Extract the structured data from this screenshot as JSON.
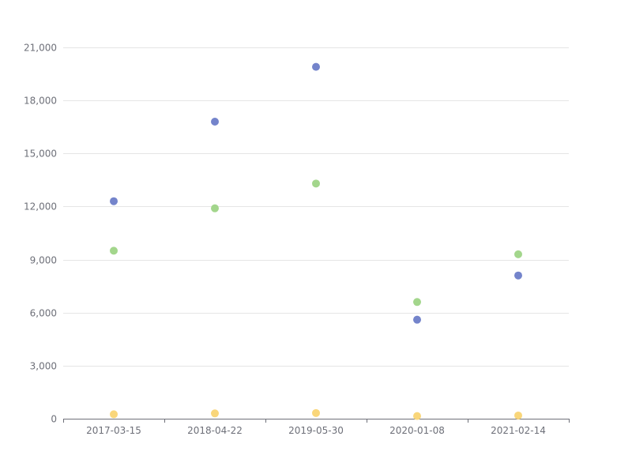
{
  "chart_data": {
    "type": "scatter",
    "x": [
      "2017-03-15",
      "2018-04-22",
      "2019-05-30",
      "2020-01-08",
      "2021-02-14"
    ],
    "series": [
      {
        "values": [
          12300,
          16800,
          19900,
          5600,
          8100
        ],
        "color": "#7484cb"
      },
      {
        "values": [
          9500,
          11900,
          13300,
          6600,
          9300
        ],
        "color": "#a3d68c"
      },
      {
        "values": [
          250,
          300,
          320,
          150,
          180
        ],
        "color": "#f9d67a"
      }
    ],
    "y_ticks": [
      "0",
      "3,000",
      "6,000",
      "9,000",
      "12,000",
      "15,000",
      "18,000",
      "21,000"
    ],
    "ylim": [
      0,
      21000
    ],
    "ytick_step": 3000,
    "grid": true,
    "axis_color": "#6e7079",
    "grid_color": "#e5e5e5"
  }
}
